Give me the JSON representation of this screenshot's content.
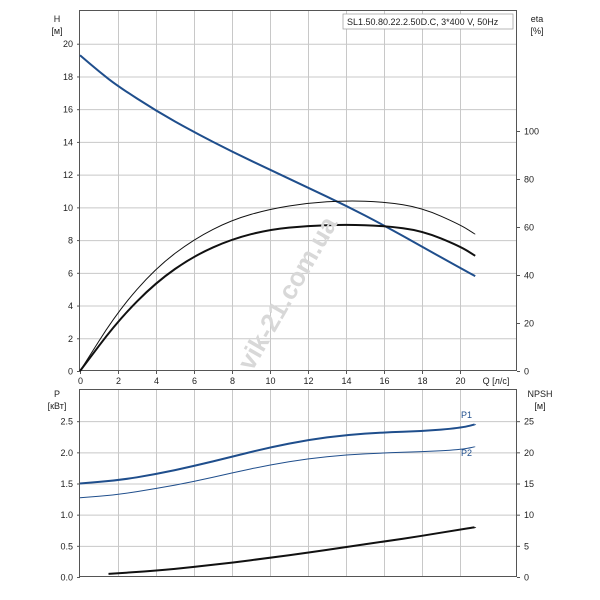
{
  "chart_data": [
    {
      "type": "line",
      "title": "SL1.50.80.22.2.50D.C, 3*400 V, 50Hz",
      "left_axis": {
        "label": "H",
        "unit": "[м]",
        "ticks": [
          "0",
          "2",
          "4",
          "6",
          "8",
          "10",
          "12",
          "14",
          "16",
          "18",
          "20"
        ],
        "ylim": [
          0,
          22
        ]
      },
      "right_axis": {
        "label": "eta",
        "unit": "[%]",
        "ticks": [
          "0",
          "20",
          "40",
          "60",
          "80",
          "100"
        ],
        "ylim": [
          0,
          150
        ]
      },
      "x_axis": {
        "label": "Q [л/с]",
        "ticks": [
          "0",
          "2",
          "4",
          "6",
          "8",
          "10",
          "12",
          "14",
          "16",
          "18",
          "20"
        ],
        "xlim": [
          0,
          23
        ]
      },
      "grid": true,
      "series": [
        {
          "axis": "left",
          "color": "#1f4e8c",
          "width": 2,
          "x": [
            0,
            1,
            2,
            4,
            6,
            8,
            10,
            12,
            14,
            16,
            18,
            20,
            20.8
          ],
          "y": [
            19.3,
            18.3,
            17.4,
            15.9,
            14.6,
            13.4,
            12.3,
            11.2,
            10.1,
            8.9,
            7.6,
            6.3,
            5.8
          ]
        },
        {
          "axis": "right",
          "color": "#111111",
          "width": 1,
          "x": [
            0,
            2,
            4,
            6,
            8,
            10,
            12,
            14,
            16,
            18,
            20,
            20.8
          ],
          "y": [
            0,
            25,
            43,
            55,
            63,
            67.5,
            70,
            71,
            70.5,
            68,
            61,
            57
          ]
        },
        {
          "axis": "right",
          "color": "#111111",
          "width": 2,
          "x": [
            0,
            2,
            4,
            6,
            8,
            10,
            12,
            14,
            16,
            18,
            20,
            20.8
          ],
          "y": [
            0,
            21,
            37,
            48,
            55,
            59,
            60.5,
            61,
            60.5,
            58.5,
            52,
            48
          ]
        }
      ]
    },
    {
      "type": "line",
      "left_axis": {
        "label": "P",
        "unit": "[кВт]",
        "ticks": [
          "0.0",
          "0.5",
          "1.0",
          "1.5",
          "2.0",
          "2.5"
        ],
        "ylim": [
          0,
          3
        ]
      },
      "right_axis": {
        "label": "NPSH",
        "unit": "[м]",
        "ticks": [
          "0",
          "5",
          "10",
          "15",
          "20",
          "25"
        ],
        "ylim": [
          0,
          30
        ]
      },
      "x_axis": {
        "xlim": [
          0,
          23
        ]
      },
      "grid": true,
      "series": [
        {
          "name": "P1",
          "axis": "left",
          "color": "#1f4e8c",
          "width": 2,
          "x": [
            0,
            2,
            4,
            6,
            8,
            10,
            12,
            14,
            16,
            18,
            20,
            20.8
          ],
          "y": [
            1.5,
            1.55,
            1.65,
            1.78,
            1.93,
            2.08,
            2.2,
            2.28,
            2.32,
            2.34,
            2.39,
            2.45
          ]
        },
        {
          "name": "P2",
          "axis": "left",
          "color": "#1f4e8c",
          "width": 1,
          "x": [
            0,
            2,
            4,
            6,
            8,
            10,
            12,
            14,
            16,
            18,
            20,
            20.8
          ],
          "y": [
            1.27,
            1.32,
            1.42,
            1.53,
            1.67,
            1.8,
            1.9,
            1.96,
            1.99,
            2.01,
            2.04,
            2.09
          ]
        },
        {
          "axis": "right",
          "color": "#111111",
          "width": 2,
          "x": [
            1.5,
            4,
            6,
            8,
            10,
            12,
            14,
            16,
            18,
            20,
            20.8
          ],
          "y": [
            0.5,
            1.0,
            1.6,
            2.3,
            3.1,
            3.9,
            4.8,
            5.7,
            6.6,
            7.6,
            8.0
          ]
        }
      ]
    }
  ],
  "watermark": "vik-21.com.ua"
}
